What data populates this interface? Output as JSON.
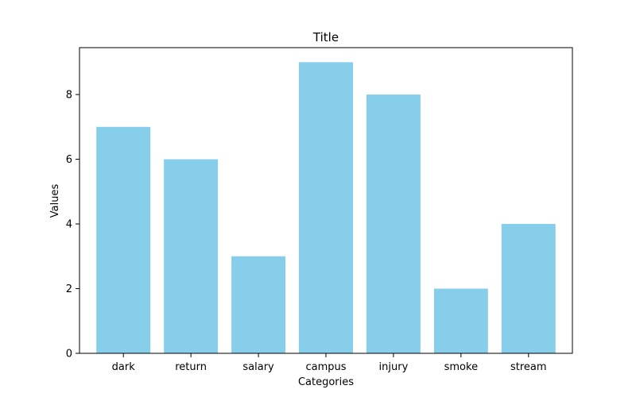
{
  "chart_data": {
    "type": "bar",
    "title": "Title",
    "xlabel": "Categories",
    "ylabel": "Values",
    "categories": [
      "dark",
      "return",
      "salary",
      "campus",
      "injury",
      "smoke",
      "stream"
    ],
    "values": [
      7,
      6,
      3,
      9,
      8,
      2,
      4
    ],
    "ylim": [
      0,
      9.45
    ],
    "yticks": [
      "0",
      "2",
      "4",
      "6",
      "8"
    ],
    "grid": false,
    "legend": "none",
    "bar_color": "#87CEEB",
    "axis_color": "#000000"
  }
}
